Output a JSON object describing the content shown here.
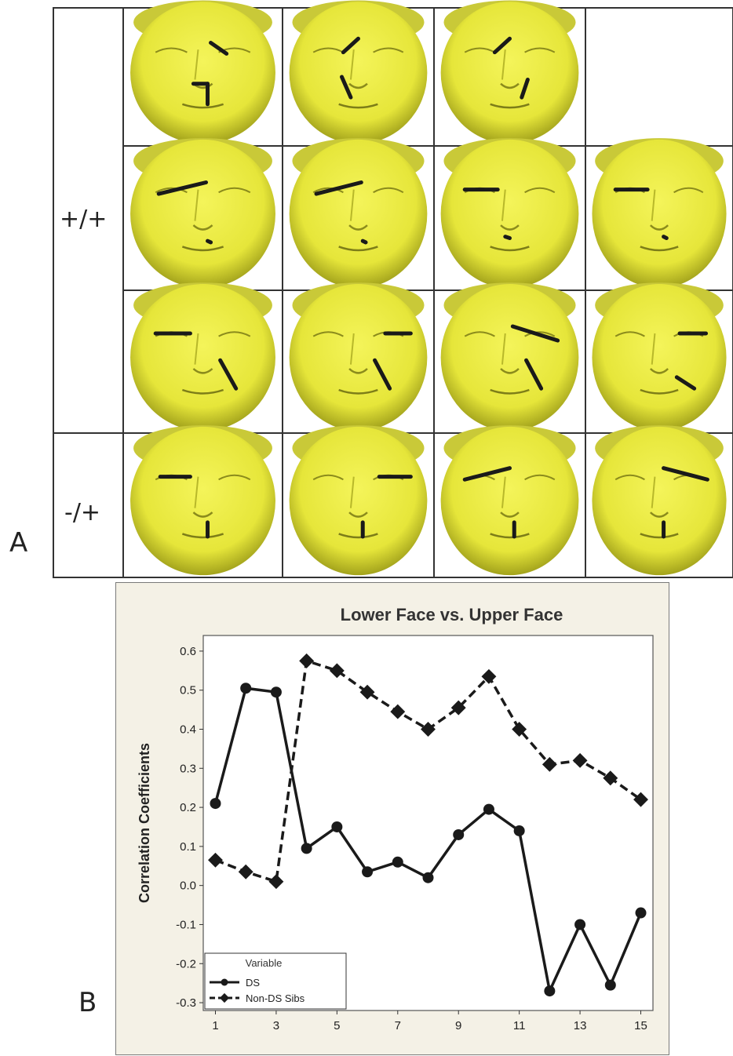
{
  "panel_a": {
    "letter": "A",
    "row_groups": [
      {
        "label": "+/+",
        "rows": 3
      },
      {
        "label": "-/+",
        "rows": 1
      }
    ],
    "face_color": "#e6e63a",
    "marker_color": "#1a1a1a"
  },
  "panel_b": {
    "letter": "B"
  },
  "chart_data": {
    "type": "line",
    "title": "Lower Face vs. Upper Face",
    "xlabel": "",
    "ylabel": "Correlation Coefficients",
    "x": [
      1,
      2,
      3,
      4,
      5,
      6,
      7,
      8,
      9,
      10,
      11,
      12,
      13,
      14,
      15
    ],
    "x_ticks": [
      "1",
      "3",
      "5",
      "7",
      "9",
      "11",
      "13",
      "15"
    ],
    "y_ticks": [
      "0.6",
      "0.5",
      "0.4",
      "0.3",
      "0.2",
      "0.1",
      "0.0",
      "-0.1",
      "-0.2",
      "-0.3"
    ],
    "ylim": [
      -0.32,
      0.64
    ],
    "xlim": [
      0.6,
      15.4
    ],
    "legend": {
      "title": "Variable",
      "placement": "bottom-left"
    },
    "series": [
      {
        "name": "DS",
        "style": "solid",
        "marker": "circle",
        "color": "#1a1a1a",
        "values": [
          0.21,
          0.505,
          0.495,
          0.095,
          0.15,
          0.035,
          0.06,
          0.02,
          0.13,
          0.195,
          0.14,
          -0.27,
          -0.1,
          -0.255,
          -0.07
        ]
      },
      {
        "name": "Non-DS Sibs",
        "style": "dashed",
        "marker": "diamond",
        "color": "#1a1a1a",
        "values": [
          0.065,
          0.035,
          0.01,
          0.575,
          0.55,
          0.495,
          0.445,
          0.4,
          0.455,
          0.535,
          0.4,
          0.31,
          0.32,
          0.275,
          0.22
        ]
      }
    ]
  }
}
